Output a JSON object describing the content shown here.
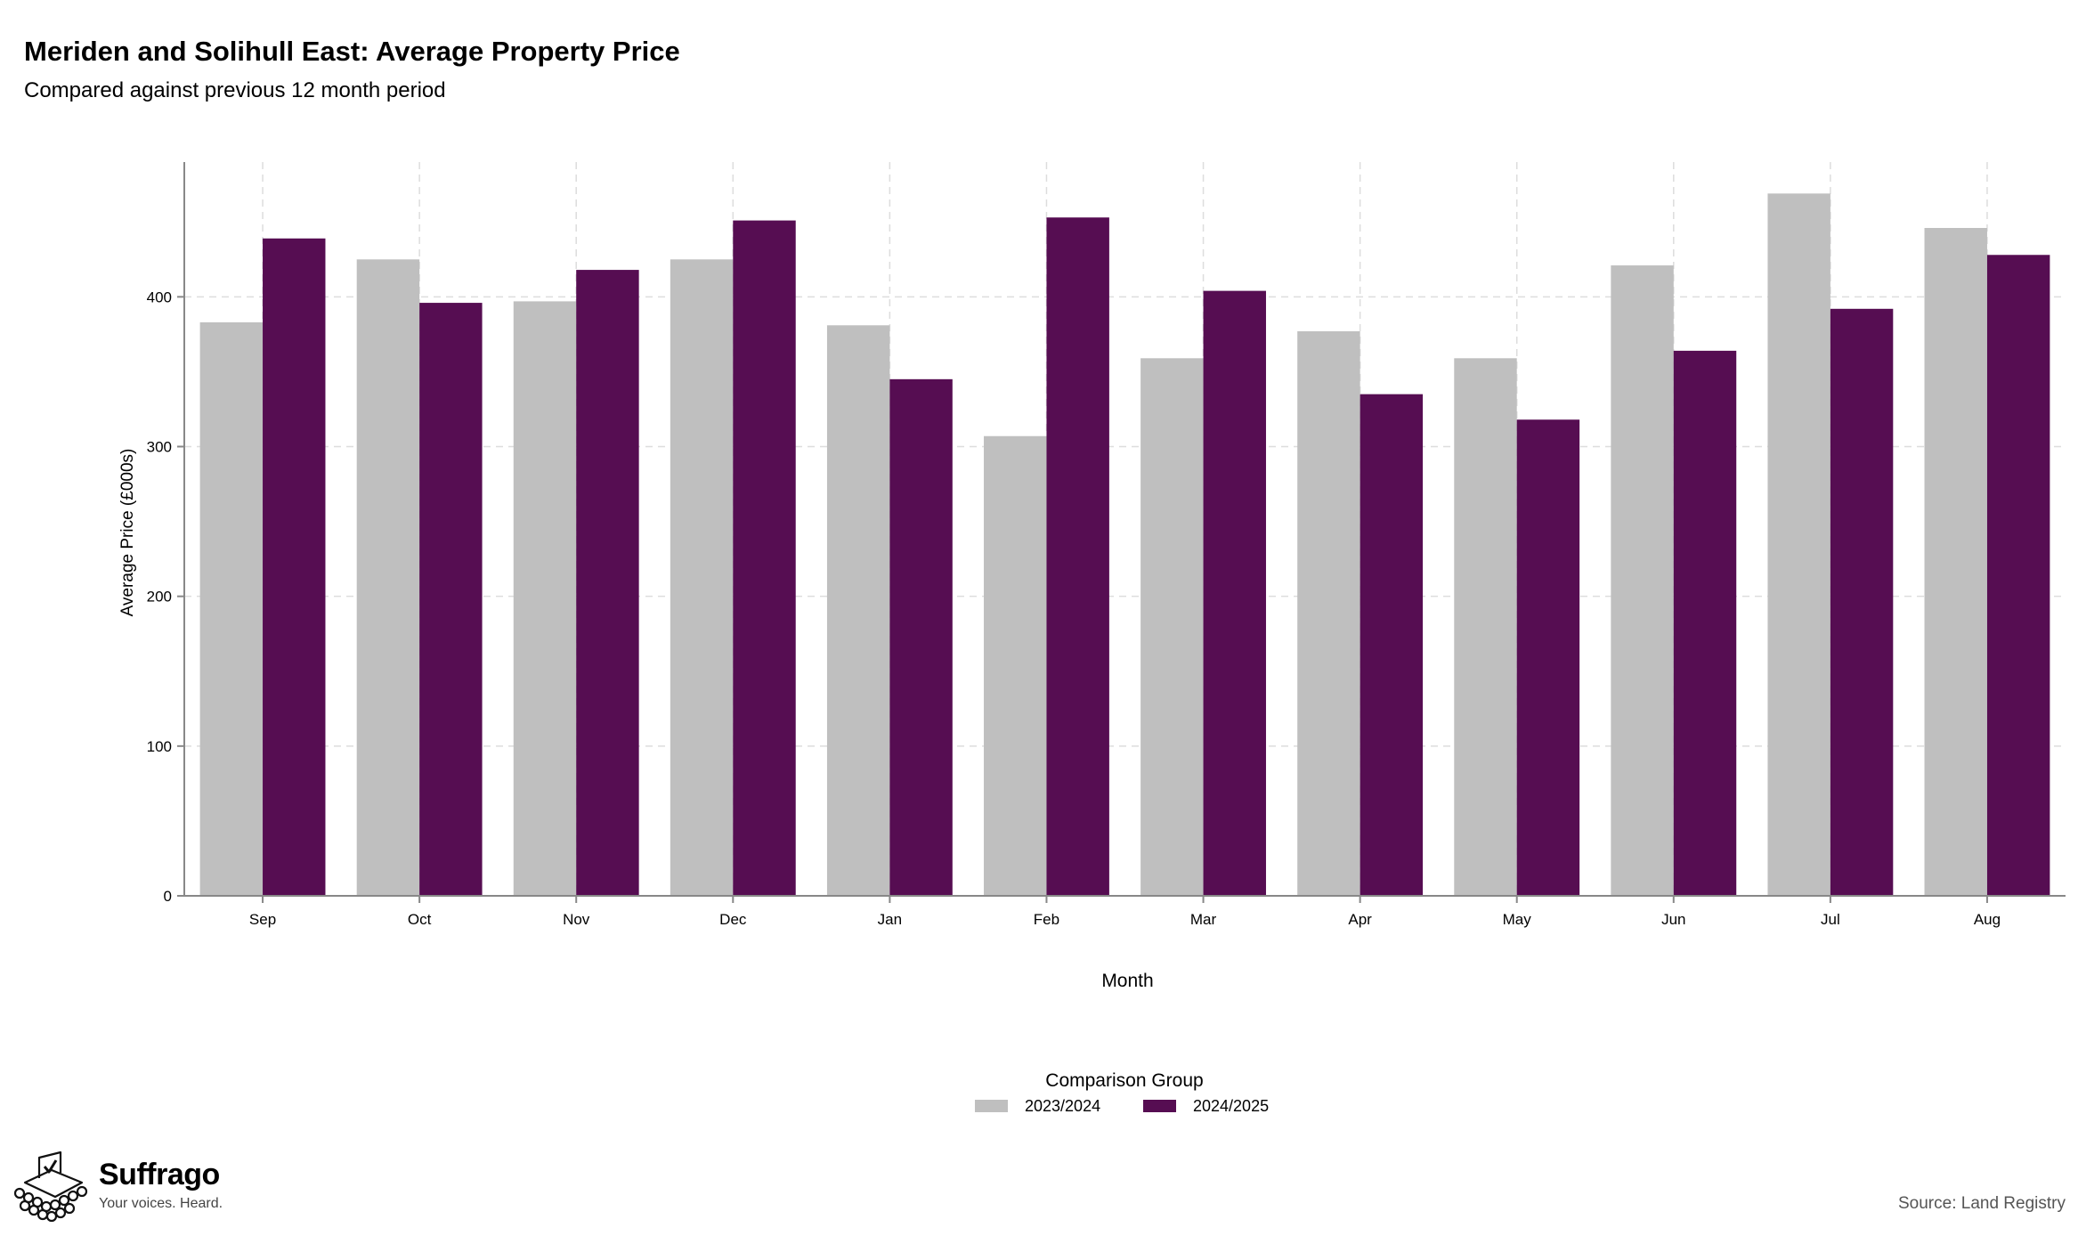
{
  "header": {
    "title": "Meriden and Solihull East: Average Property Price",
    "subtitle": "Compared against previous 12 month period"
  },
  "chart_data": {
    "type": "bar",
    "categories": [
      "Sep",
      "Oct",
      "Nov",
      "Dec",
      "Jan",
      "Feb",
      "Mar",
      "Apr",
      "May",
      "Jun",
      "Jul",
      "Aug"
    ],
    "series": [
      {
        "name": "2023/2024",
        "color": "#bfbfbf",
        "values": [
          383,
          425,
          397,
          425,
          381,
          307,
          359,
          377,
          359,
          421,
          469,
          446
        ]
      },
      {
        "name": "2024/2025",
        "color": "#560d52",
        "values": [
          439,
          396,
          418,
          451,
          345,
          453,
          404,
          335,
          318,
          364,
          392,
          428
        ]
      }
    ],
    "xlabel": "Month",
    "ylabel": "Average Price (£000s)",
    "ylim": [
      0,
      490
    ],
    "yticks": [
      0,
      100,
      200,
      300,
      400
    ],
    "grid": true,
    "legend_title": "Comparison Group",
    "legend_position": "bottom"
  },
  "footer": {
    "source": "Source: Land Registry",
    "brand_name": "Suffrago",
    "brand_tagline": "Your voices. Heard."
  }
}
